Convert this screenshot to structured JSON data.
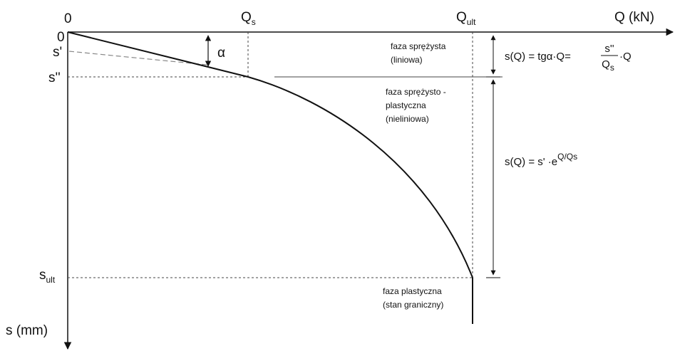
{
  "axes": {
    "x_origin": "0",
    "y_origin": "0",
    "x_label": "Q (kN)",
    "y_label": "s (mm)",
    "qs": {
      "main": "Q",
      "sub": "s"
    },
    "qult": {
      "main": "Q",
      "sub": "ult"
    },
    "s_prime": "s'",
    "s_double": "s''",
    "sult": {
      "main": "s",
      "sub": "ult"
    },
    "angle": "α"
  },
  "phases": {
    "elastic": [
      "faza sprężysta",
      "(liniowa)"
    ],
    "elastoplastic": [
      "faza sprężysto -",
      "plastyczna",
      "(nieliniowa)"
    ],
    "plastic": [
      "faza plastyczna",
      "(stan graniczny)"
    ]
  },
  "formulas": {
    "linear": {
      "left": "s(Q) = tgα·Q=",
      "numerator": "s''",
      "denominator": {
        "main": "Q",
        "sub": "s"
      },
      "right": "·Q"
    },
    "exponential": {
      "left": "s(Q) = s' ·e",
      "exponent": "Q/Qs"
    }
  }
}
